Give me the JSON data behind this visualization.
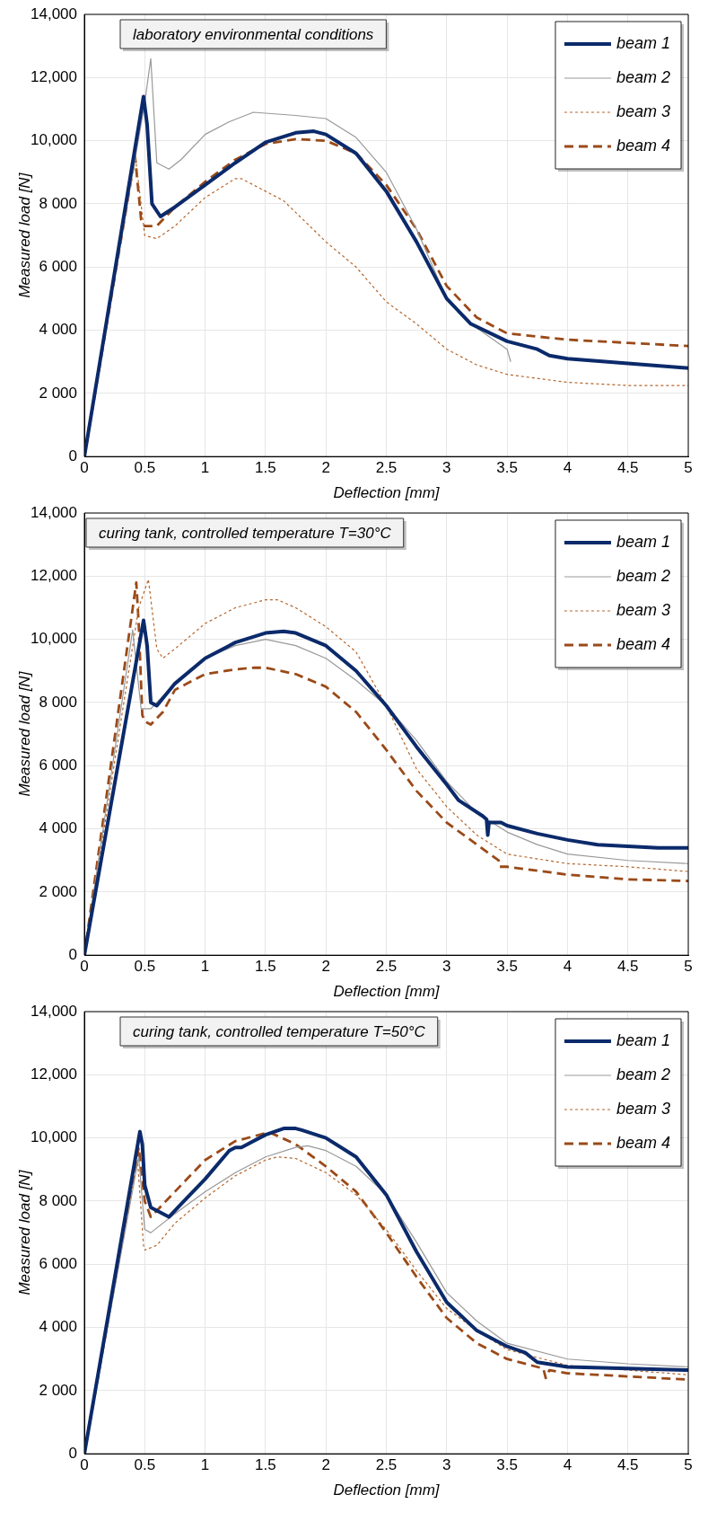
{
  "chart_data": [
    {
      "type": "line",
      "title": "laboratory environmental conditions",
      "xlabel": "Deflection [mm]",
      "ylabel": "Measured load [N]",
      "xlim": [
        0,
        5
      ],
      "ylim": [
        0,
        14000
      ],
      "xticks": [
        0,
        0.5,
        1,
        1.5,
        2,
        2.5,
        3,
        3.5,
        4,
        4.5,
        5
      ],
      "yticks": [
        {
          "value": 0,
          "label": "0"
        },
        {
          "value": 2000,
          "label": "2 000"
        },
        {
          "value": 4000,
          "label": "4 000"
        },
        {
          "value": 6000,
          "label": "6 000"
        },
        {
          "value": 8000,
          "label": "8 000"
        },
        {
          "value": 10000,
          "label": "10,000"
        },
        {
          "value": 12000,
          "label": "12,000"
        },
        {
          "value": 14000,
          "label": "14,000"
        }
      ],
      "grid": true,
      "legend": "top right",
      "marker": "none",
      "series": [
        {
          "name": "beam 1",
          "color": "#0b2a6b",
          "line_style": "solid",
          "x": [
            0,
            0.49,
            0.52,
            0.56,
            0.63,
            0.75,
            1,
            1.25,
            1.5,
            1.75,
            1.9,
            2,
            2.25,
            2.5,
            2.75,
            3,
            3.2,
            3.5,
            3.75,
            3.85,
            4,
            4.5,
            5
          ],
          "values": [
            0,
            11400,
            10500,
            8000,
            7600,
            7900,
            8600,
            9300,
            9950,
            10250,
            10300,
            10200,
            9600,
            8400,
            6800,
            5000,
            4200,
            3650,
            3400,
            3200,
            3100,
            2950,
            2800
          ]
        },
        {
          "name": "beam 2",
          "color": "#999999",
          "line_style": "solid",
          "x": [
            0,
            0.5,
            0.55,
            0.6,
            0.7,
            0.8,
            1,
            1.2,
            1.4,
            1.75,
            2,
            2.25,
            2.5,
            2.75,
            3,
            3.2,
            3.5,
            3.53
          ],
          "values": [
            0,
            11200,
            12600,
            9300,
            9100,
            9400,
            10200,
            10600,
            10900,
            10800,
            10700,
            10100,
            9000,
            7200,
            5000,
            4200,
            3400,
            3000
          ]
        },
        {
          "name": "beam 3",
          "color": "#b5652b",
          "line_style": "dotted",
          "x": [
            0,
            0.42,
            0.5,
            0.6,
            0.75,
            1,
            1.25,
            1.3,
            1.5,
            1.65,
            2,
            2.25,
            2.5,
            2.75,
            3,
            3.25,
            3.5,
            4,
            4.5,
            5
          ],
          "values": [
            0,
            9600,
            7000,
            6900,
            7300,
            8200,
            8800,
            8800,
            8400,
            8100,
            6800,
            6000,
            4900,
            4200,
            3400,
            2900,
            2600,
            2350,
            2250,
            2250
          ]
        },
        {
          "name": "beam 4",
          "color": "#9a4a18",
          "line_style": "dashed",
          "x": [
            0,
            0.42,
            0.47,
            0.5,
            0.6,
            0.75,
            1,
            1.25,
            1.5,
            1.75,
            2,
            2.25,
            2.5,
            2.75,
            3,
            3.25,
            3.5,
            4,
            4.5,
            5
          ],
          "values": [
            0,
            9500,
            7500,
            7300,
            7300,
            7900,
            8700,
            9400,
            9900,
            10050,
            10000,
            9600,
            8600,
            7200,
            5400,
            4400,
            3900,
            3700,
            3600,
            3500
          ]
        }
      ]
    },
    {
      "type": "line",
      "title": "curing tank, controlled temperature T=30°C",
      "xlabel": "Deflection [mm]",
      "ylabel": "Measured load [N]",
      "xlim": [
        0,
        5
      ],
      "ylim": [
        0,
        14000
      ],
      "xticks": [
        0,
        0.5,
        1,
        1.5,
        2,
        2.5,
        3,
        3.5,
        4,
        4.5,
        5
      ],
      "yticks": [
        {
          "value": 0,
          "label": "0"
        },
        {
          "value": 2000,
          "label": "2 000"
        },
        {
          "value": 4000,
          "label": "4 000"
        },
        {
          "value": 6000,
          "label": "6 000"
        },
        {
          "value": 8000,
          "label": "8 000"
        },
        {
          "value": 10000,
          "label": "10,000"
        },
        {
          "value": 12000,
          "label": "12,000"
        },
        {
          "value": 14000,
          "label": "14,000"
        }
      ],
      "grid": true,
      "legend": "top right",
      "marker": "none",
      "series": [
        {
          "name": "beam 1",
          "color": "#0b2a6b",
          "line_style": "solid",
          "x": [
            0,
            0.49,
            0.52,
            0.55,
            0.6,
            0.75,
            1,
            1.25,
            1.5,
            1.65,
            1.75,
            2,
            2.25,
            2.5,
            2.75,
            3,
            3.1,
            3.3,
            3.33,
            3.34,
            3.35,
            3.45,
            3.5,
            3.75,
            4,
            4.25,
            4.5,
            4.75,
            5
          ],
          "values": [
            0,
            10600,
            9800,
            8000,
            7900,
            8600,
            9400,
            9900,
            10200,
            10250,
            10200,
            9800,
            9000,
            7900,
            6600,
            5400,
            4900,
            4400,
            4300,
            3800,
            4200,
            4200,
            4100,
            3850,
            3650,
            3500,
            3450,
            3400,
            3400
          ]
        },
        {
          "name": "beam 2",
          "color": "#999999",
          "line_style": "solid",
          "x": [
            0,
            0.4,
            0.45,
            0.47,
            0.55,
            0.75,
            1,
            1.25,
            1.5,
            1.75,
            2,
            2.25,
            2.5,
            2.75,
            3,
            3.25,
            3.5,
            3.75,
            4,
            4.5,
            5
          ],
          "values": [
            0,
            10300,
            8500,
            7800,
            7800,
            8600,
            9400,
            9800,
            10000,
            9800,
            9400,
            8700,
            7900,
            6800,
            5500,
            4500,
            3900,
            3500,
            3200,
            3000,
            2900
          ]
        },
        {
          "name": "beam 3",
          "color": "#b5652b",
          "line_style": "dotted",
          "x": [
            0,
            0.45,
            0.53,
            0.6,
            0.65,
            0.75,
            1,
            1.25,
            1.5,
            1.6,
            1.75,
            2,
            2.25,
            2.5,
            2.75,
            3,
            3.25,
            3.5,
            4,
            4.5,
            5
          ],
          "values": [
            0,
            11000,
            11900,
            9700,
            9400,
            9700,
            10500,
            11000,
            11250,
            11250,
            11000,
            10400,
            9600,
            7900,
            5900,
            4700,
            3800,
            3200,
            2900,
            2800,
            2650
          ]
        },
        {
          "name": "beam 4",
          "color": "#9a4a18",
          "line_style": "dashed",
          "x": [
            0,
            0.43,
            0.45,
            0.48,
            0.5,
            0.55,
            0.65,
            0.75,
            1,
            1.25,
            1.4,
            1.5,
            1.75,
            2,
            2.25,
            2.5,
            2.75,
            3,
            3.25,
            3.43,
            3.44,
            3.5,
            4,
            4.5,
            5
          ],
          "values": [
            0,
            11800,
            10500,
            7600,
            7400,
            7300,
            7700,
            8400,
            8900,
            9050,
            9100,
            9100,
            8900,
            8500,
            7700,
            6500,
            5200,
            4200,
            3500,
            3000,
            2800,
            2800,
            2550,
            2400,
            2350
          ]
        }
      ]
    },
    {
      "type": "line",
      "title": "curing tank, controlled temperature T=50°C",
      "xlabel": "Deflection [mm]",
      "ylabel": "Measured load [N]",
      "xlim": [
        0,
        5
      ],
      "ylim": [
        0,
        14000
      ],
      "xticks": [
        0,
        0.5,
        1,
        1.5,
        2,
        2.5,
        3,
        3.5,
        4,
        4.5,
        5
      ],
      "yticks": [
        {
          "value": 0,
          "label": "0"
        },
        {
          "value": 2000,
          "label": "2 000"
        },
        {
          "value": 4000,
          "label": "4 000"
        },
        {
          "value": 6000,
          "label": "6 000"
        },
        {
          "value": 8000,
          "label": "8 000"
        },
        {
          "value": 10000,
          "label": "10,000"
        },
        {
          "value": 12000,
          "label": "12,000"
        },
        {
          "value": 14000,
          "label": "14,000"
        }
      ],
      "grid": true,
      "legend": "top right",
      "marker": "none",
      "series": [
        {
          "name": "beam 1",
          "color": "#0b2a6b",
          "line_style": "solid",
          "x": [
            0,
            0.46,
            0.48,
            0.5,
            0.55,
            0.6,
            0.65,
            0.7,
            0.8,
            1,
            1.2,
            1.25,
            1.3,
            1.5,
            1.65,
            1.75,
            1.8,
            2,
            2.25,
            2.5,
            2.75,
            3,
            3.25,
            3.5,
            3.65,
            3.75,
            4,
            4.5,
            5
          ],
          "values": [
            0,
            10200,
            9800,
            8500,
            7800,
            7700,
            7600,
            7500,
            7900,
            8700,
            9600,
            9700,
            9700,
            10100,
            10300,
            10300,
            10250,
            10000,
            9400,
            8200,
            6400,
            4800,
            3900,
            3400,
            3200,
            2900,
            2750,
            2700,
            2650
          ]
        },
        {
          "name": "beam 2",
          "color": "#999999",
          "line_style": "solid",
          "x": [
            0,
            0.45,
            0.5,
            0.55,
            0.75,
            1,
            1.25,
            1.5,
            1.75,
            1.85,
            2,
            2.25,
            2.5,
            2.75,
            3,
            3.25,
            3.5,
            4,
            4.5,
            5
          ],
          "values": [
            0,
            9400,
            7100,
            7000,
            7600,
            8300,
            8900,
            9400,
            9700,
            9750,
            9600,
            9100,
            8200,
            6700,
            5100,
            4200,
            3500,
            3000,
            2850,
            2750
          ]
        },
        {
          "name": "beam 3",
          "color": "#b5652b",
          "line_style": "dotted",
          "x": [
            0,
            0.44,
            0.49,
            0.5,
            0.6,
            0.75,
            1,
            1.25,
            1.5,
            1.6,
            1.75,
            2,
            2.25,
            2.5,
            2.75,
            3,
            3.25,
            3.5,
            4,
            4.5,
            5
          ],
          "values": [
            0,
            9300,
            6600,
            6450,
            6600,
            7300,
            8100,
            8800,
            9300,
            9400,
            9350,
            8900,
            8200,
            7100,
            5800,
            4600,
            3900,
            3300,
            2800,
            2650,
            2500
          ]
        },
        {
          "name": "beam 4",
          "color": "#9a4a18",
          "line_style": "dashed",
          "x": [
            0,
            0.45,
            0.5,
            0.55,
            0.75,
            1,
            1.25,
            1.5,
            1.55,
            1.75,
            2,
            2.25,
            2.5,
            2.75,
            3,
            3.25,
            3.5,
            3.8,
            3.82,
            3.85,
            4,
            4.5,
            5
          ],
          "values": [
            0,
            9700,
            8000,
            7500,
            8300,
            9300,
            9900,
            10150,
            10150,
            9800,
            9100,
            8300,
            7000,
            5600,
            4300,
            3500,
            3000,
            2700,
            2400,
            2650,
            2550,
            2450,
            2350
          ]
        }
      ]
    }
  ]
}
